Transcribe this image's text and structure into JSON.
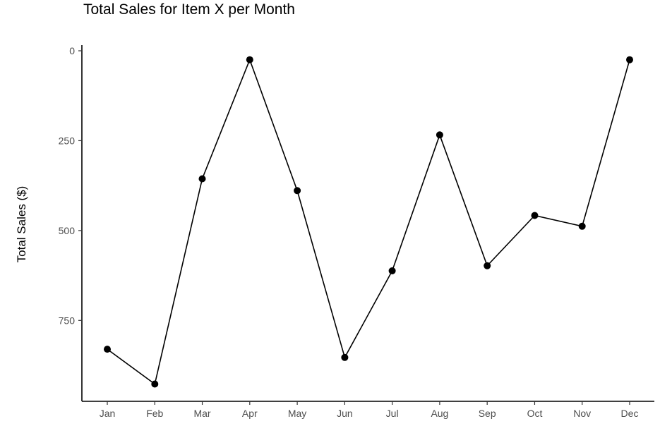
{
  "chart_data": {
    "type": "line",
    "title": "Total Sales for Item X per Month",
    "xlabel": "",
    "ylabel": "Total Sales ($)",
    "y_reversed": true,
    "ylim": [
      0,
      975
    ],
    "yticks": [
      0,
      250,
      500,
      750
    ],
    "categories": [
      "Jan",
      "Feb",
      "Mar",
      "Apr",
      "May",
      "Jun",
      "Jul",
      "Aug",
      "Sep",
      "Oct",
      "Nov",
      "Dec"
    ],
    "series": [
      {
        "name": "",
        "values": [
          830,
          927,
          356,
          25,
          389,
          853,
          612,
          234,
          598,
          458,
          488,
          25
        ]
      }
    ],
    "grid": false,
    "legend": "none",
    "colors": {
      "line": "#000000",
      "point": "#000000",
      "axis": "#000000",
      "tick_label": "#4d4d4d"
    }
  }
}
